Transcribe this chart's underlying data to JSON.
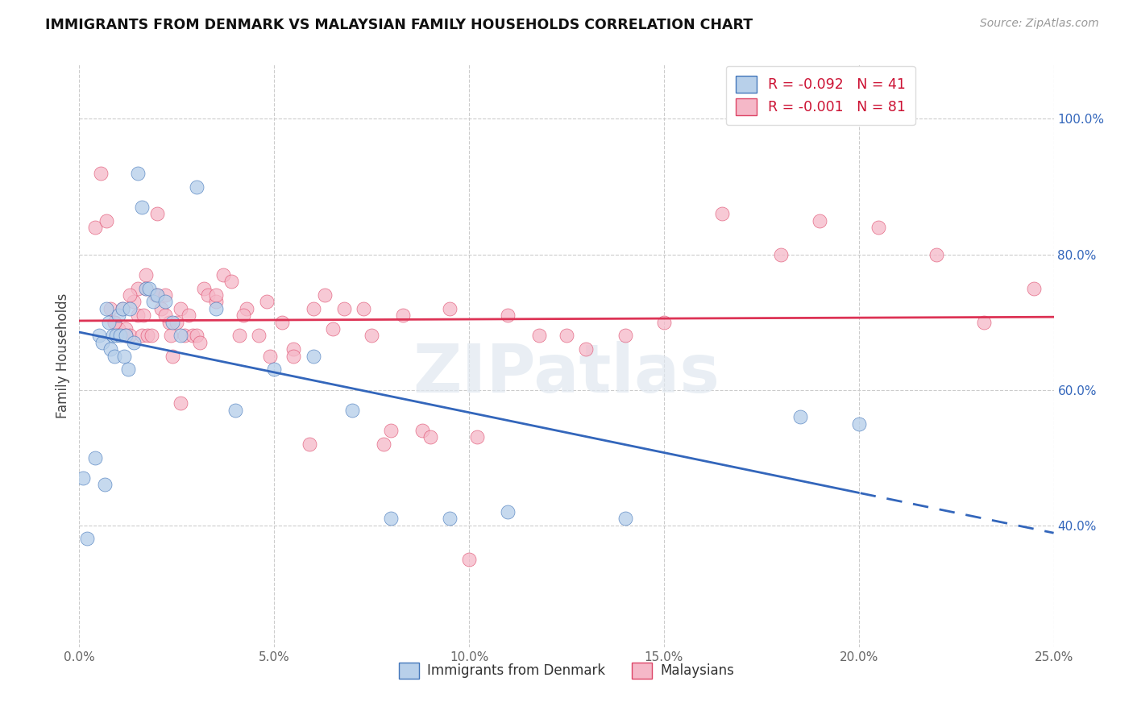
{
  "title": "IMMIGRANTS FROM DENMARK VS MALAYSIAN FAMILY HOUSEHOLDS CORRELATION CHART",
  "source": "Source: ZipAtlas.com",
  "ylabel": "Family Households",
  "legend_blue_r": "R = -0.092",
  "legend_blue_n": "N = 41",
  "legend_pink_r": "R = -0.001",
  "legend_pink_n": "N = 81",
  "legend_label_blue": "Immigrants from Denmark",
  "legend_label_pink": "Malaysians",
  "blue_face": "#b8d0ea",
  "pink_face": "#f5b8c8",
  "blue_edge": "#4477bb",
  "pink_edge": "#dd4466",
  "trend_blue": "#3366bb",
  "trend_pink": "#dd3355",
  "r_color": "#cc1133",
  "watermark": "ZIPatlas",
  "xlim": [
    0.0,
    25.0
  ],
  "ylim": [
    22.0,
    108.0
  ],
  "ytick_vals": [
    40.0,
    60.0,
    80.0,
    100.0
  ],
  "xtick_vals": [
    0,
    5,
    10,
    15,
    20,
    25
  ],
  "blue_x": [
    0.1,
    0.2,
    0.4,
    0.5,
    0.6,
    0.65,
    0.7,
    0.75,
    0.8,
    0.85,
    0.9,
    0.95,
    1.0,
    1.05,
    1.1,
    1.15,
    1.2,
    1.25,
    1.3,
    1.4,
    1.5,
    1.6,
    1.7,
    1.8,
    1.9,
    2.0,
    2.2,
    2.4,
    2.6,
    3.0,
    3.5,
    4.0,
    5.0,
    6.0,
    7.0,
    8.0,
    9.5,
    11.0,
    14.0,
    18.5,
    20.0
  ],
  "blue_y": [
    47,
    38,
    50,
    68,
    67,
    46,
    72,
    70,
    66,
    68,
    65,
    68,
    71,
    68,
    72,
    65,
    68,
    63,
    72,
    67,
    92,
    87,
    75,
    75,
    73,
    74,
    73,
    70,
    68,
    90,
    72,
    57,
    63,
    65,
    57,
    41,
    41,
    42,
    41,
    56,
    55
  ],
  "pink_x": [
    0.4,
    0.55,
    0.7,
    0.8,
    0.9,
    1.0,
    1.1,
    1.2,
    1.3,
    1.4,
    1.5,
    1.6,
    1.65,
    1.7,
    1.75,
    1.85,
    1.95,
    2.0,
    2.1,
    2.2,
    2.3,
    2.35,
    2.4,
    2.5,
    2.6,
    2.7,
    2.8,
    2.9,
    3.0,
    3.2,
    3.3,
    3.5,
    3.7,
    3.9,
    4.1,
    4.3,
    4.6,
    4.9,
    5.2,
    5.5,
    5.9,
    6.3,
    6.8,
    7.3,
    7.8,
    8.3,
    8.8,
    9.5,
    10.2,
    11.0,
    11.8,
    13.0,
    14.0,
    15.0,
    16.5,
    18.0,
    19.0,
    20.5,
    22.0,
    23.2,
    24.5,
    1.2,
    1.5,
    2.2,
    2.6,
    3.5,
    4.8,
    6.0,
    7.5,
    9.0,
    5.5,
    6.5,
    8.0,
    4.2,
    3.1,
    2.0,
    1.7,
    0.9,
    1.3,
    10.0,
    12.5
  ],
  "pink_y": [
    84,
    92,
    85,
    72,
    70,
    69,
    72,
    69,
    68,
    73,
    71,
    68,
    71,
    75,
    68,
    68,
    74,
    74,
    72,
    74,
    70,
    68,
    65,
    70,
    72,
    68,
    71,
    68,
    68,
    75,
    74,
    73,
    77,
    76,
    68,
    72,
    68,
    65,
    70,
    66,
    52,
    74,
    72,
    72,
    52,
    71,
    54,
    72,
    53,
    71,
    68,
    66,
    68,
    70,
    86,
    80,
    85,
    84,
    80,
    70,
    75,
    68,
    75,
    71,
    58,
    74,
    73,
    72,
    68,
    53,
    65,
    69,
    54,
    71,
    67,
    86,
    77,
    70,
    74,
    35,
    68
  ]
}
